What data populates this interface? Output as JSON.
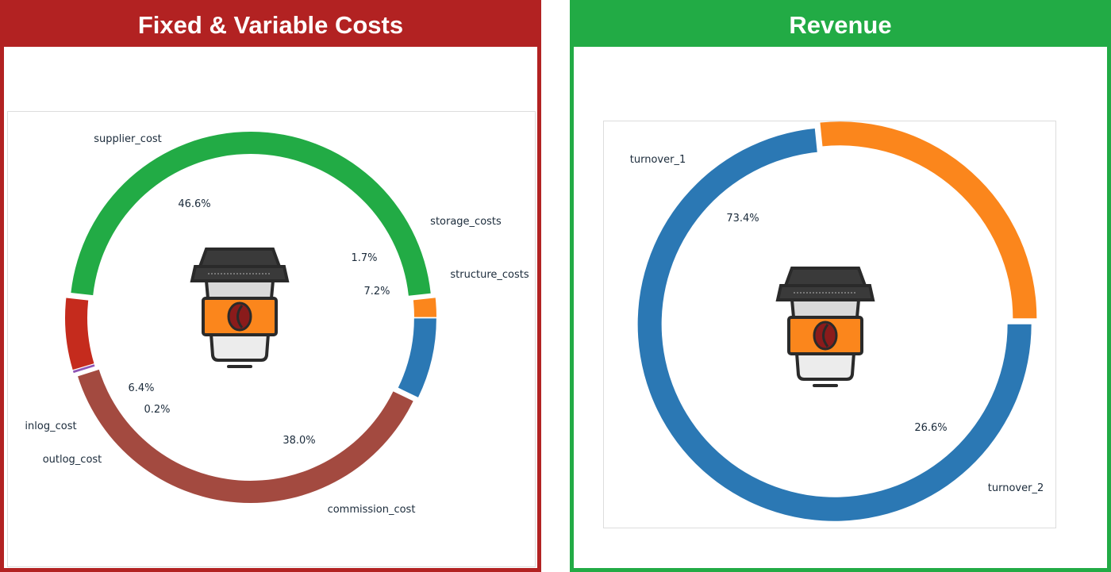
{
  "panels": {
    "costs": {
      "title": "Fixed & Variable Costs"
    },
    "revenue": {
      "title": "Revenue"
    }
  },
  "colors": {
    "costs_theme": "#b22222",
    "revenue_theme": "#22ab45",
    "blue": "#2b78b4",
    "orange": "#fb861c",
    "green": "#22ab45",
    "red": "#c52b1d",
    "brown": "#a34a40",
    "purple": "#8e55b5"
  },
  "icons": {
    "center_icon": "coffee-cup-icon"
  },
  "chart_data": [
    {
      "type": "pie",
      "style": "donut",
      "labels": [
        "structure_costs",
        "commission_cost",
        "outlog_cost",
        "inlog_cost",
        "supplier_cost",
        "storage_costs"
      ],
      "values": [
        7.2,
        38.0,
        0.2,
        6.4,
        46.6,
        1.7
      ],
      "value_labels": [
        "7.2%",
        "38.0%",
        "0.2%",
        "6.4%",
        "46.6%",
        "1.7%"
      ],
      "colors": [
        "#2b78b4",
        "#a34a40",
        "#8e55b5",
        "#c52b1d",
        "#22ab45",
        "#fb861c"
      ]
    },
    {
      "type": "pie",
      "style": "donut",
      "labels": [
        "turnover_1",
        "turnover_2"
      ],
      "values": [
        73.4,
        26.6
      ],
      "value_labels": [
        "73.4%",
        "26.6%"
      ],
      "colors": [
        "#2b78b4",
        "#fb861c"
      ]
    }
  ]
}
